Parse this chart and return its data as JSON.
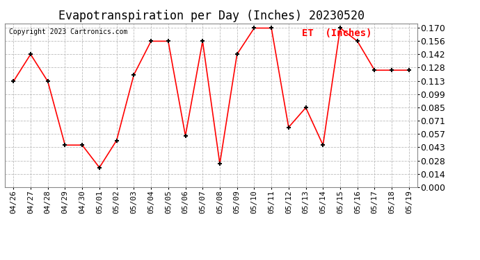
{
  "title": "Evapotranspiration per Day (Inches) 20230520",
  "copyright": "Copyright 2023 Cartronics.com",
  "legend_label": "ET  (Inches)",
  "x_labels": [
    "04/26",
    "04/27",
    "04/28",
    "04/29",
    "04/30",
    "05/01",
    "05/02",
    "05/03",
    "05/04",
    "05/05",
    "05/06",
    "05/07",
    "05/08",
    "05/09",
    "05/10",
    "05/11",
    "05/12",
    "05/13",
    "05/14",
    "05/15",
    "05/16",
    "05/17",
    "05/18",
    "05/19"
  ],
  "y_values": [
    0.113,
    0.142,
    0.113,
    0.045,
    0.045,
    0.021,
    0.05,
    0.12,
    0.156,
    0.156,
    0.055,
    0.156,
    0.025,
    0.142,
    0.17,
    0.17,
    0.064,
    0.085,
    0.045,
    0.17,
    0.156,
    0.125,
    0.125,
    0.125
  ],
  "ylim": [
    0.0,
    0.175
  ],
  "yticks": [
    0.0,
    0.014,
    0.028,
    0.043,
    0.057,
    0.071,
    0.085,
    0.099,
    0.113,
    0.128,
    0.142,
    0.156,
    0.17
  ],
  "line_color": "red",
  "marker": "+",
  "marker_color": "black",
  "grid_color": "#bbbbbb",
  "bg_color": "#ffffff",
  "title_fontsize": 12,
  "copyright_fontsize": 7,
  "legend_fontsize": 10,
  "tick_fontsize": 8,
  "ytick_fontsize": 9
}
